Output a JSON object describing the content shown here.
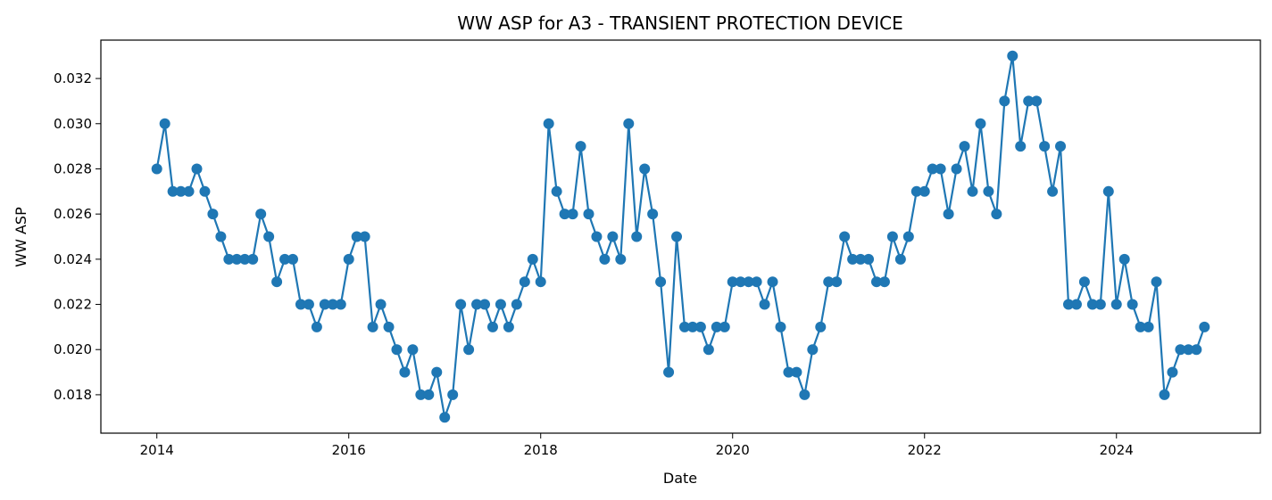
{
  "chart_data": {
    "type": "line",
    "title": "WW ASP for A3 - TRANSIENT PROTECTION DEVICE",
    "xlabel": "Date",
    "ylabel": "WW ASP",
    "grid": false,
    "legend": "none",
    "marker": "circle",
    "color": "#1f77b4",
    "xlim": [
      "2013-06-01",
      "2025-07-01"
    ],
    "ylim": [
      0.0163,
      0.0337
    ],
    "x_ticks": [
      "2014",
      "2016",
      "2018",
      "2020",
      "2022",
      "2024"
    ],
    "y_ticks": [
      "0.018",
      "0.020",
      "0.022",
      "0.024",
      "0.026",
      "0.028",
      "0.030",
      "0.032"
    ],
    "series": [
      {
        "x": [
          "2014-01",
          "2014-02",
          "2014-03",
          "2014-04",
          "2014-05",
          "2014-06",
          "2014-07",
          "2014-08",
          "2014-09",
          "2014-10",
          "2014-11",
          "2014-12",
          "2015-01",
          "2015-02",
          "2015-03",
          "2015-04",
          "2015-05",
          "2015-06",
          "2015-07",
          "2015-08",
          "2015-09",
          "2015-10",
          "2015-11",
          "2015-12",
          "2016-01",
          "2016-02",
          "2016-03",
          "2016-04",
          "2016-05",
          "2016-06",
          "2016-07",
          "2016-08",
          "2016-09",
          "2016-10",
          "2016-11",
          "2016-12",
          "2017-01",
          "2017-02",
          "2017-03",
          "2017-04",
          "2017-05",
          "2017-06",
          "2017-07",
          "2017-08",
          "2017-09",
          "2017-10",
          "2017-11",
          "2017-12",
          "2018-01",
          "2018-02",
          "2018-03",
          "2018-04",
          "2018-05",
          "2018-06",
          "2018-07",
          "2018-08",
          "2018-09",
          "2018-10",
          "2018-11",
          "2018-12",
          "2019-01",
          "2019-02",
          "2019-03",
          "2019-04",
          "2019-05",
          "2019-06",
          "2019-07",
          "2019-08",
          "2019-09",
          "2019-10",
          "2019-11",
          "2019-12",
          "2020-01",
          "2020-02",
          "2020-03",
          "2020-04",
          "2020-05",
          "2020-06",
          "2020-07",
          "2020-08",
          "2020-09",
          "2020-10",
          "2020-11",
          "2020-12",
          "2021-01",
          "2021-02",
          "2021-03",
          "2021-04",
          "2021-05",
          "2021-06",
          "2021-07",
          "2021-08",
          "2021-09",
          "2021-10",
          "2021-11",
          "2021-12",
          "2022-01",
          "2022-02",
          "2022-03",
          "2022-04",
          "2022-05",
          "2022-06",
          "2022-07",
          "2022-08",
          "2022-09",
          "2022-10",
          "2022-11",
          "2022-12",
          "2023-01",
          "2023-02",
          "2023-03",
          "2023-04",
          "2023-05",
          "2023-06",
          "2023-07",
          "2023-08",
          "2023-09",
          "2023-10",
          "2023-11",
          "2023-12",
          "2024-01",
          "2024-02",
          "2024-03",
          "2024-04",
          "2024-05",
          "2024-06",
          "2024-07",
          "2024-08",
          "2024-09",
          "2024-10",
          "2024-11",
          "2024-12"
        ],
        "values": [
          0.028,
          0.03,
          0.027,
          0.027,
          0.027,
          0.028,
          0.027,
          0.026,
          0.025,
          0.024,
          0.024,
          0.024,
          0.024,
          0.026,
          0.025,
          0.023,
          0.024,
          0.024,
          0.022,
          0.022,
          0.021,
          0.022,
          0.022,
          0.022,
          0.024,
          0.025,
          0.025,
          0.021,
          0.022,
          0.021,
          0.02,
          0.019,
          0.02,
          0.018,
          0.018,
          0.019,
          0.017,
          0.018,
          0.022,
          0.02,
          0.022,
          0.022,
          0.021,
          0.022,
          0.021,
          0.022,
          0.023,
          0.024,
          0.023,
          0.03,
          0.027,
          0.026,
          0.026,
          0.029,
          0.026,
          0.025,
          0.024,
          0.025,
          0.024,
          0.03,
          0.025,
          0.028,
          0.026,
          0.023,
          0.019,
          0.025,
          0.021,
          0.021,
          0.021,
          0.02,
          0.021,
          0.021,
          0.023,
          0.023,
          0.023,
          0.023,
          0.022,
          0.023,
          0.021,
          0.019,
          0.019,
          0.018,
          0.02,
          0.021,
          0.023,
          0.023,
          0.025,
          0.024,
          0.024,
          0.024,
          0.023,
          0.023,
          0.025,
          0.024,
          0.025,
          0.027,
          0.027,
          0.028,
          0.028,
          0.026,
          0.028,
          0.029,
          0.027,
          0.03,
          0.027,
          0.026,
          0.031,
          0.033,
          0.029,
          0.031,
          0.031,
          0.029,
          0.027,
          0.029,
          0.022,
          0.022,
          0.023,
          0.022,
          0.022,
          0.027,
          0.022,
          0.024,
          0.022,
          0.021,
          0.021,
          0.023,
          0.018,
          0.019,
          0.02,
          0.02,
          0.02,
          0.021
        ]
      }
    ]
  }
}
